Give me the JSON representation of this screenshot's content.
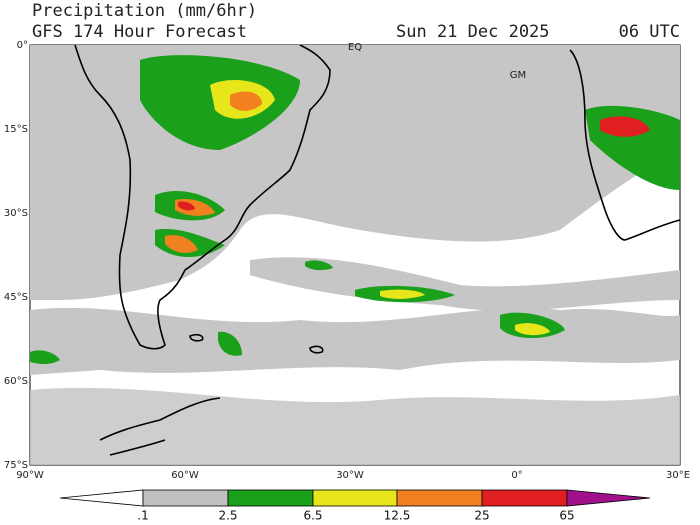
{
  "header": {
    "title": "Precipitation (mm/6hr)",
    "subtitle": "GFS 174 Hour Forecast",
    "date": "Sun 21 Dec 2025",
    "time": "06 UTC"
  },
  "map_labels": {
    "equator": "EQ",
    "prime_meridian": "GM"
  },
  "axes": {
    "latitude": [
      "0°",
      "15°S",
      "30°S",
      "45°S",
      "60°S",
      "75°S"
    ],
    "longitude": [
      "90°W",
      "60°W",
      "30°W",
      "0°",
      "30°E"
    ]
  },
  "legend": {
    "labels": [
      ".1",
      "2.5",
      "6.5",
      "12.5",
      "25",
      "65"
    ]
  }
}
